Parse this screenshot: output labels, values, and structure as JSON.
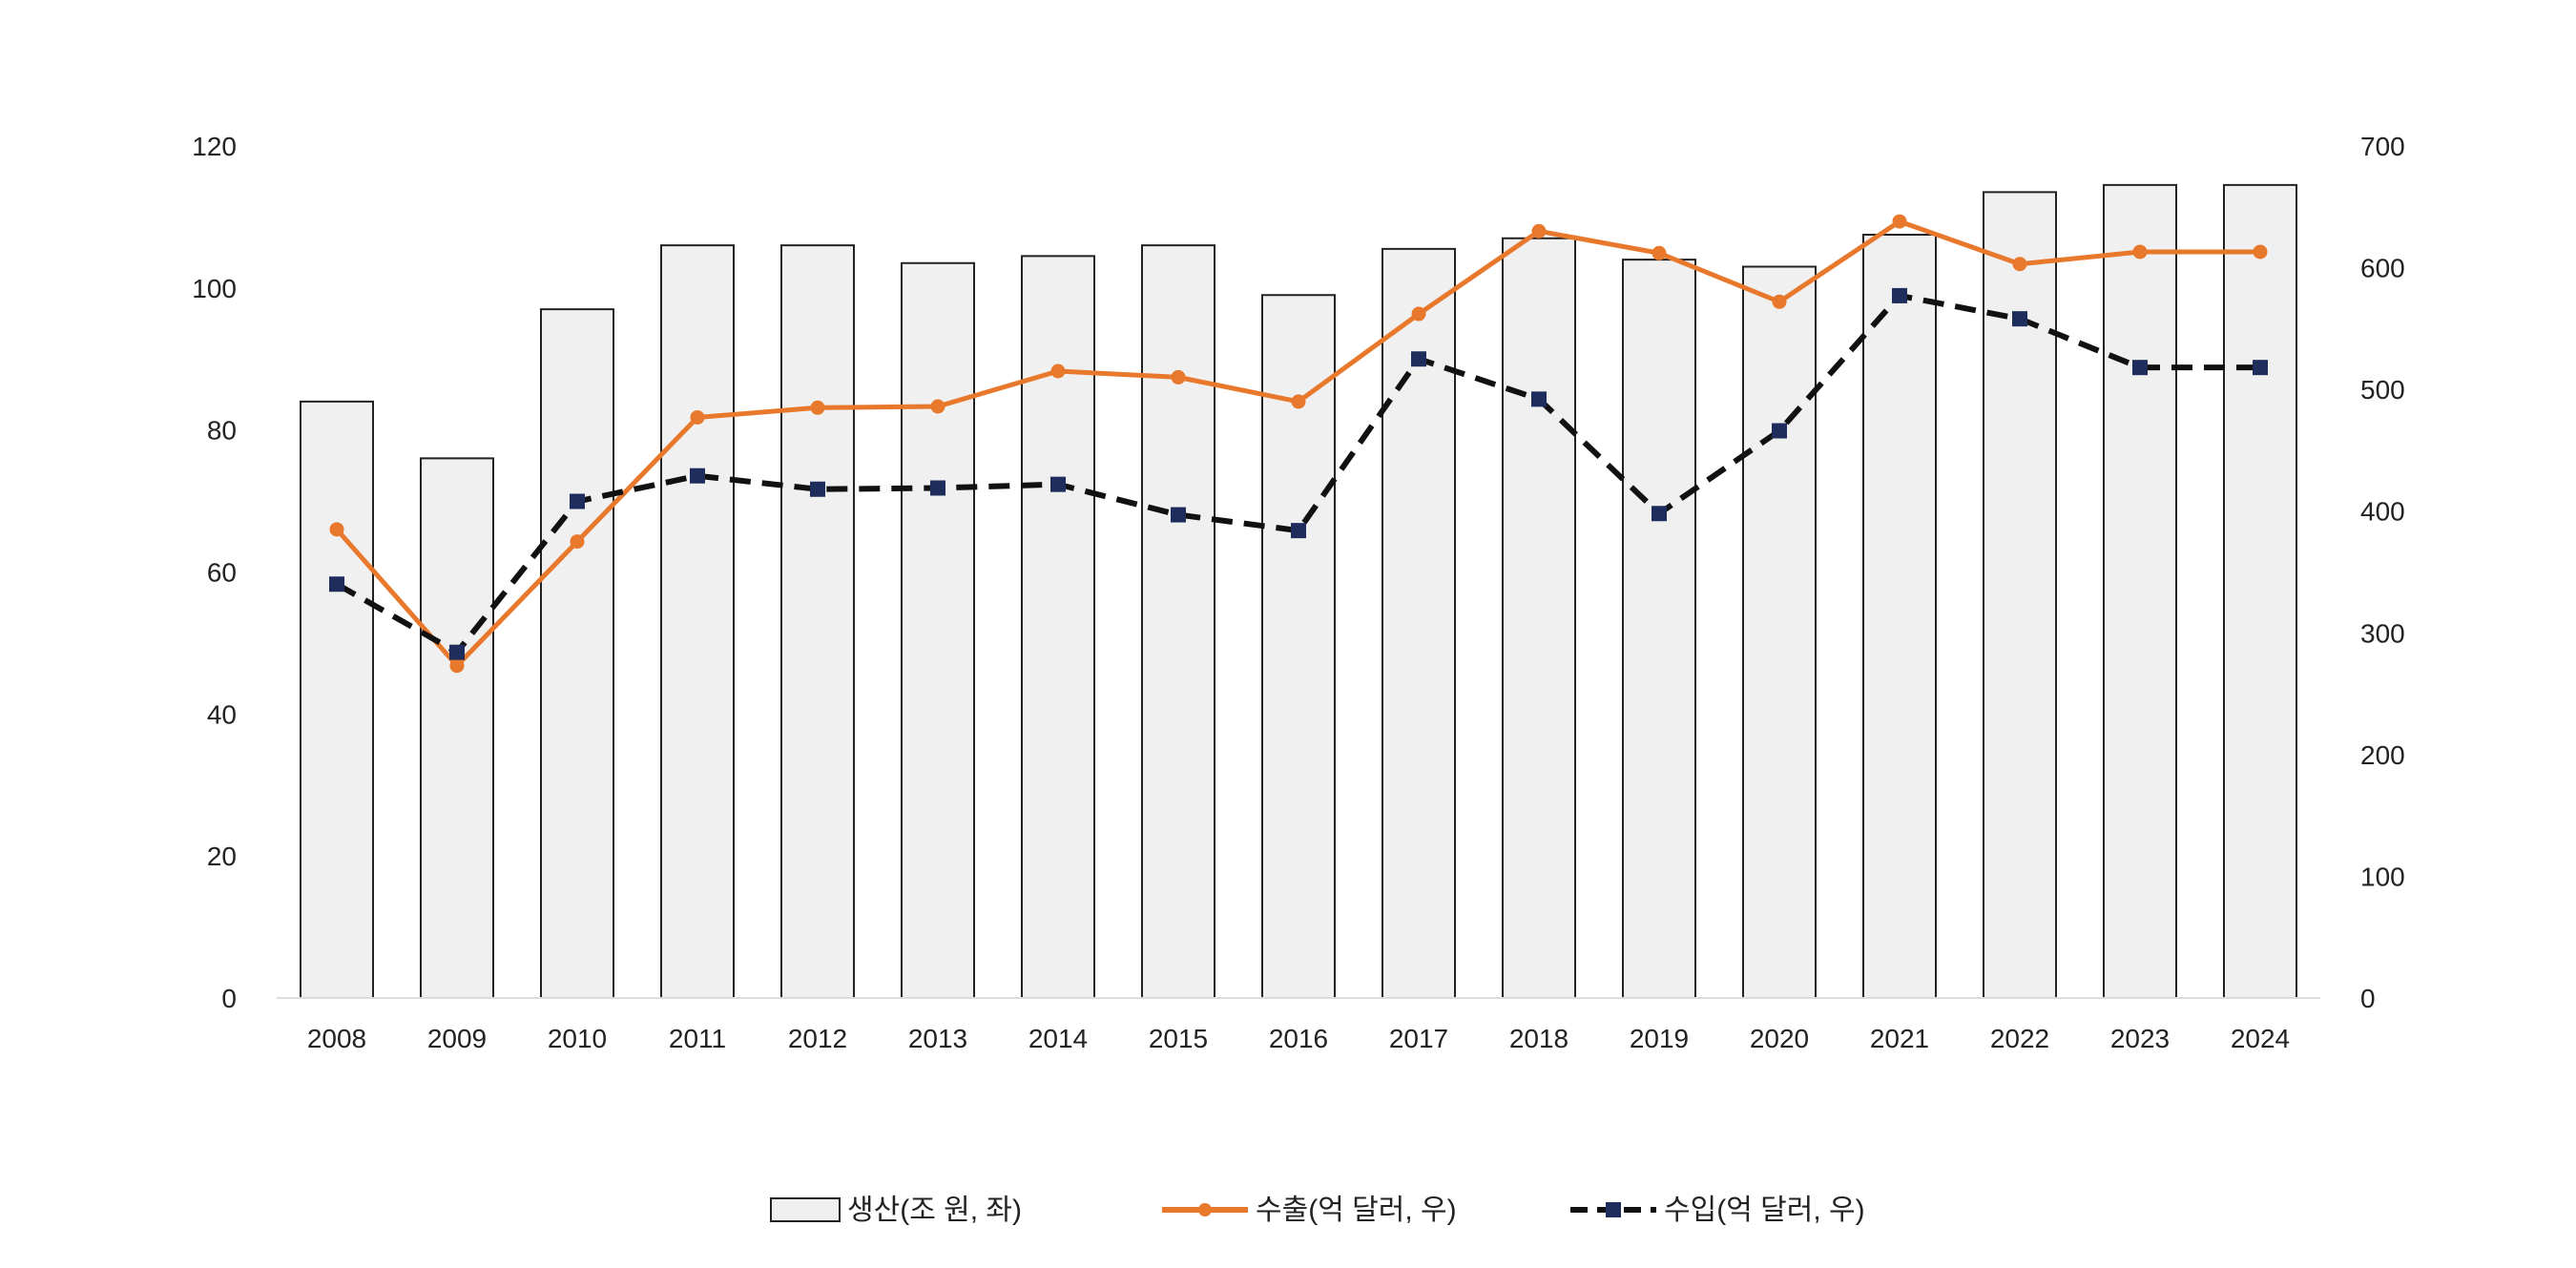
{
  "chart_data": {
    "type": "bar",
    "categories": [
      "2008",
      "2009",
      "2010",
      "2011",
      "2012",
      "2013",
      "2014",
      "2015",
      "2016",
      "2017",
      "2018",
      "2019",
      "2020",
      "2021",
      "2022",
      "2023",
      "2024"
    ],
    "y_left": {
      "ylim": [
        0,
        120
      ],
      "ticks": [
        "0",
        "20",
        "40",
        "60",
        "80",
        "100",
        "120"
      ]
    },
    "y_right": {
      "ylim": [
        0,
        700
      ],
      "ticks": [
        "0",
        "100",
        "200",
        "300",
        "400",
        "500",
        "600",
        "700"
      ]
    },
    "grid": false,
    "legend_position": "bottom",
    "series": [
      {
        "name": "생산(조 원, 좌)",
        "type": "bar",
        "axis": "left",
        "values": [
          84,
          76,
          97,
          106,
          106,
          103.5,
          104.5,
          106,
          99,
          105.5,
          107,
          104,
          103,
          107.5,
          113.5,
          114.5,
          114.5
        ],
        "color": "#f0f0f0",
        "stroke": "#222222"
      },
      {
        "name": "수출(억 달러, 우)",
        "type": "line",
        "axis": "right",
        "values": [
          385,
          273,
          375,
          477,
          485,
          486,
          515,
          510,
          490,
          562,
          630,
          612,
          572,
          638,
          603,
          613,
          613
        ],
        "color": "#e8782b",
        "marker": "circle",
        "dash": "solid"
      },
      {
        "name": "수입(억 달러, 우)",
        "type": "line",
        "axis": "right",
        "values": [
          340,
          284,
          408,
          429,
          418,
          419,
          422,
          397,
          384,
          525,
          492,
          398,
          466,
          577,
          558,
          518,
          518
        ],
        "color": "#111111",
        "marker_color": "#1f2d5c",
        "marker": "square",
        "dash": "dashed"
      }
    ]
  }
}
